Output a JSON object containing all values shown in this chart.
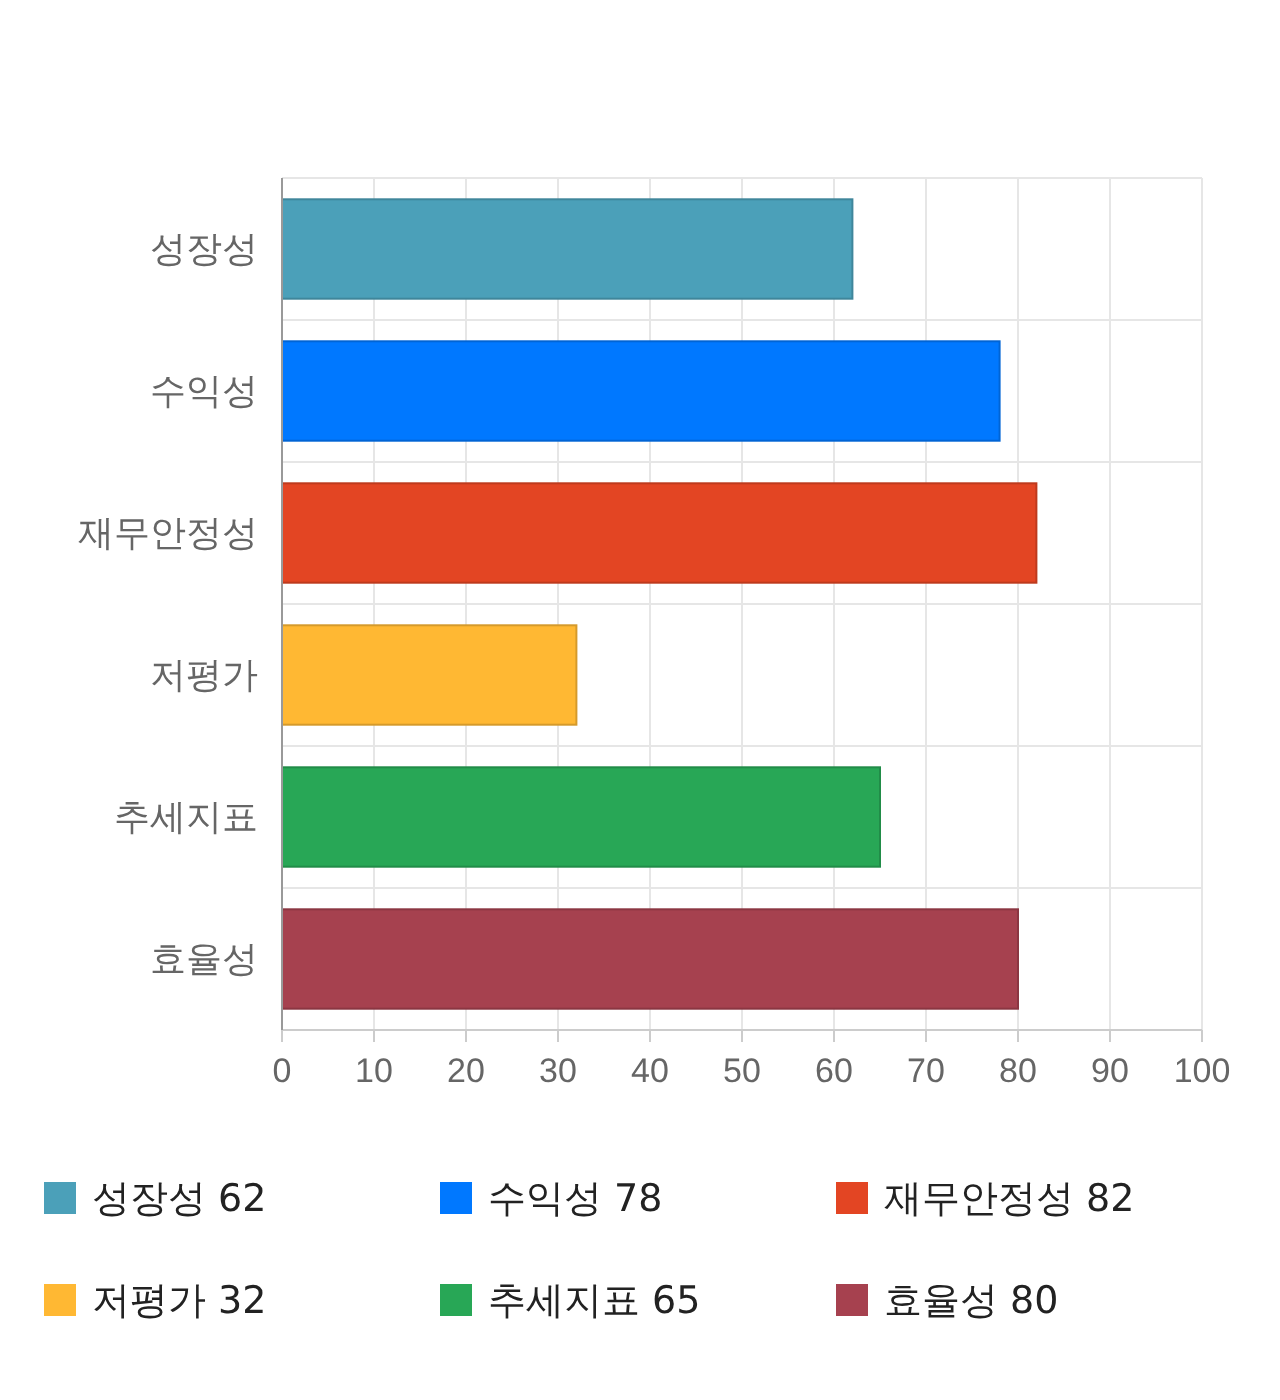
{
  "chart_data": {
    "type": "bar",
    "orientation": "horizontal",
    "stacked": true,
    "categories": [
      "성장성",
      "수익성",
      "재무안정성",
      "저평가",
      "추세지표",
      "효율성"
    ],
    "series": [
      {
        "name": "성장성 62",
        "color": "#4ba0b9",
        "values": [
          62,
          null,
          null,
          null,
          null,
          null
        ]
      },
      {
        "name": "수익성 78",
        "color": "#0078ff",
        "values": [
          null,
          78,
          null,
          null,
          null,
          null
        ]
      },
      {
        "name": "재무안정성 82",
        "color": "#e34523",
        "values": [
          null,
          null,
          82,
          null,
          null,
          null
        ]
      },
      {
        "name": "저평가 32",
        "color": "#ffb833",
        "values": [
          null,
          null,
          null,
          32,
          null,
          null
        ]
      },
      {
        "name": "추세지표 65",
        "color": "#28a756",
        "values": [
          null,
          null,
          null,
          null,
          65,
          null
        ]
      },
      {
        "name": "효율성 80",
        "color": "#a6414f",
        "values": [
          null,
          null,
          null,
          null,
          null,
          80
        ]
      }
    ],
    "xlim": [
      0,
      100
    ],
    "xticks": [
      0,
      10,
      20,
      30,
      40,
      50,
      60,
      70,
      80,
      90,
      100
    ],
    "grid": true,
    "legend": "bottom"
  }
}
